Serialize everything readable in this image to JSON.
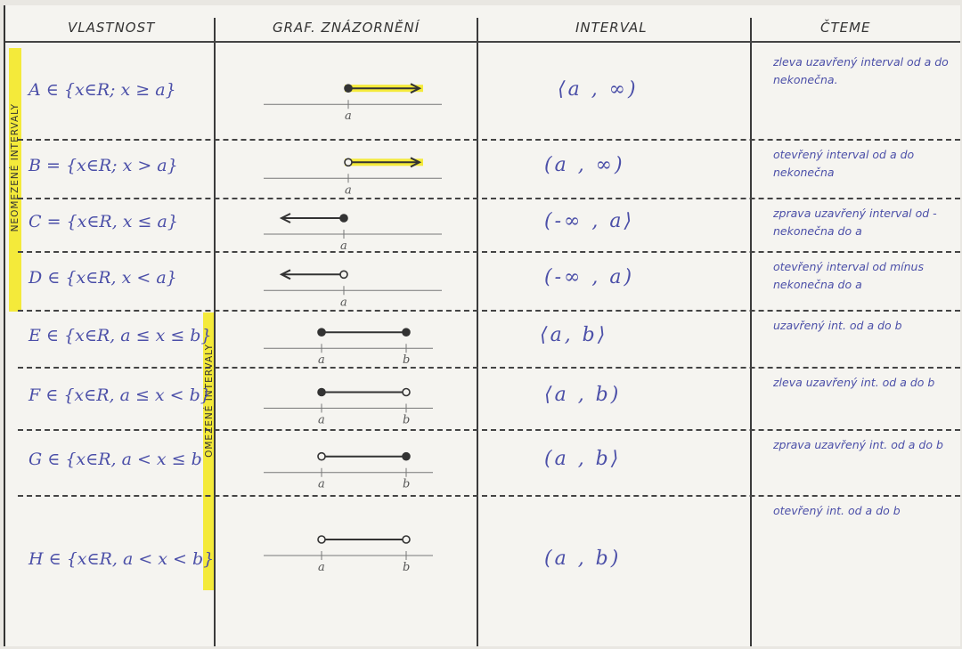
{
  "headers": {
    "property": "VLASTNOST",
    "graph": "GRAF. ZNÁZORNĚNÍ",
    "interval": "INTERVAL",
    "reading": "ČTEME"
  },
  "side_labels": {
    "unbounded": "NEOMEZENÉ INTERVALY",
    "bounded": "OMEZENÉ INTERVALY"
  },
  "highlight_color": "#f4ea3a",
  "ink_color": "#4b4fa8",
  "rows": [
    {
      "property": "A ∈ {x∈R; x ≥ a}",
      "interval": "⟨a , ∞)",
      "reading": "zleva uzavřený interval od a do nekonečna.",
      "graph": {
        "left": "a",
        "left_closed": true,
        "right": "+inf",
        "labels": [
          "a"
        ]
      }
    },
    {
      "property": "B = {x∈R; x > a}",
      "interval": "(a , ∞)",
      "reading": "otevřený interval od a do nekonečna",
      "graph": {
        "left": "a",
        "left_closed": false,
        "right": "+inf",
        "labels": [
          "a"
        ]
      }
    },
    {
      "property": "C = {x∈R, x ≤ a}",
      "interval": "(-∞ , a⟩",
      "reading": "zprava uzavřený interval od -nekonečna do a",
      "graph": {
        "left": "-inf",
        "right": "a",
        "right_closed": true,
        "labels": [
          "a"
        ]
      }
    },
    {
      "property": "D ∈ {x∈R, x < a}",
      "interval": "(-∞ , a)",
      "reading": "otevřený interval od mínus nekonečna do a",
      "graph": {
        "left": "-inf",
        "right": "a",
        "right_closed": false,
        "labels": [
          "a"
        ]
      }
    },
    {
      "property": "E ∈ {x∈R, a ≤ x ≤ b}",
      "interval": "⟨a, b⟩",
      "reading": "uzavřený int. od a do b",
      "graph": {
        "left": "a",
        "left_closed": true,
        "right": "b",
        "right_closed": true,
        "labels": [
          "a",
          "b"
        ]
      }
    },
    {
      "property": "F ∈ {x∈R, a ≤ x < b}",
      "interval": "⟨a , b)",
      "reading": "zleva uzavřený int. od a do b",
      "graph": {
        "left": "a",
        "left_closed": true,
        "right": "b",
        "right_closed": false,
        "labels": [
          "a",
          "b"
        ]
      }
    },
    {
      "property": "G ∈ {x∈R, a < x ≤ b",
      "interval": "(a , b⟩",
      "reading": "zprava uzavřený int. od a do b",
      "graph": {
        "left": "a",
        "left_closed": false,
        "right": "b",
        "right_closed": true,
        "labels": [
          "a",
          "b"
        ]
      }
    },
    {
      "property": "H ∈ {x∈R, a < x < b}",
      "interval": "(a , b)",
      "reading": "otevřený int. od a do b",
      "graph": {
        "left": "a",
        "left_closed": false,
        "right": "b",
        "right_closed": false,
        "labels": [
          "a",
          "b"
        ]
      }
    }
  ]
}
